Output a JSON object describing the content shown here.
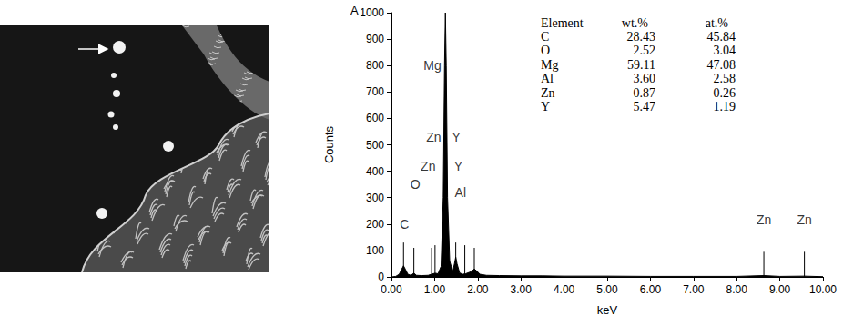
{
  "chart_data": {
    "type": "line",
    "title": "A",
    "x_label": "keV",
    "y_label": "Counts",
    "color": "#000000",
    "grid": false,
    "x": [
      0.0,
      0.1,
      0.18,
      0.24,
      0.28,
      0.32,
      0.38,
      0.45,
      0.52,
      0.58,
      0.7,
      0.85,
      0.93,
      1.01,
      1.08,
      1.15,
      1.2,
      1.23,
      1.25,
      1.27,
      1.3,
      1.35,
      1.42,
      1.46,
      1.49,
      1.52,
      1.58,
      1.65,
      1.72,
      1.85,
      1.92,
      1.98,
      2.05,
      2.2,
      2.5,
      3.0,
      3.5,
      4.0,
      5.0,
      6.0,
      7.0,
      8.0,
      8.63,
      9.0,
      9.57,
      10.0
    ],
    "values": [
      0,
      2,
      10,
      30,
      42,
      30,
      10,
      6,
      14,
      6,
      5,
      6,
      10,
      14,
      12,
      40,
      300,
      800,
      1000,
      800,
      300,
      60,
      20,
      50,
      75,
      50,
      15,
      10,
      12,
      20,
      30,
      22,
      10,
      6,
      5,
      4,
      4,
      3,
      3,
      2,
      2,
      2,
      5,
      2,
      3,
      1
    ],
    "xlim": [
      0,
      10
    ],
    "ylim": [
      0,
      1000
    ],
    "xticks": [
      {
        "value": 0,
        "label": "0.00"
      },
      {
        "value": 1,
        "label": "1.00"
      },
      {
        "value": 2,
        "label": "2.00"
      },
      {
        "value": 3,
        "label": "3.00"
      },
      {
        "value": 4,
        "label": "4.00"
      },
      {
        "value": 5,
        "label": "5.00"
      },
      {
        "value": 6,
        "label": "6.00"
      },
      {
        "value": 7,
        "label": "7.00"
      },
      {
        "value": 8,
        "label": "8.00"
      },
      {
        "value": 9,
        "label": "9.00"
      },
      {
        "value": 10,
        "label": "10.00"
      }
    ],
    "yticks": [
      0,
      100,
      200,
      300,
      400,
      500,
      600,
      700,
      800,
      900,
      1000
    ],
    "annotations": [
      {
        "text": "C",
        "x": 0.3,
        "y": 200
      },
      {
        "text": "O",
        "x": 0.55,
        "y": 350
      },
      {
        "text": "Zn",
        "x": 0.85,
        "y": 420
      },
      {
        "text": "Y",
        "x": 1.55,
        "y": 420
      },
      {
        "text": "Zn",
        "x": 0.98,
        "y": 530
      },
      {
        "text": "Y",
        "x": 1.5,
        "y": 530
      },
      {
        "text": "Mg",
        "x": 0.95,
        "y": 800
      },
      {
        "text": "Al",
        "x": 1.6,
        "y": 320
      },
      {
        "text": "Zn",
        "x": 8.63,
        "y": 215
      },
      {
        "text": "Zn",
        "x": 9.57,
        "y": 215
      }
    ],
    "element_lines": [
      {
        "x": 0.28,
        "height": 130
      },
      {
        "x": 0.52,
        "height": 110
      },
      {
        "x": 0.93,
        "height": 110
      },
      {
        "x": 1.01,
        "height": 120
      },
      {
        "x": 1.49,
        "height": 130
      },
      {
        "x": 1.7,
        "height": 120
      },
      {
        "x": 1.92,
        "height": 110
      },
      {
        "x": 8.63,
        "height": 95
      },
      {
        "x": 9.57,
        "height": 95
      }
    ],
    "table": {
      "columns": [
        "Element",
        "wt.%",
        "at.%"
      ],
      "rows": [
        [
          "C",
          "28.43",
          "45.84"
        ],
        [
          "O",
          "2.52",
          "3.04"
        ],
        [
          "Mg",
          "59.11",
          "47.08"
        ],
        [
          "Al",
          "3.60",
          "2.58"
        ],
        [
          "Zn",
          "0.87",
          "0.26"
        ],
        [
          "Y",
          "5.47",
          "1.19"
        ]
      ]
    }
  }
}
